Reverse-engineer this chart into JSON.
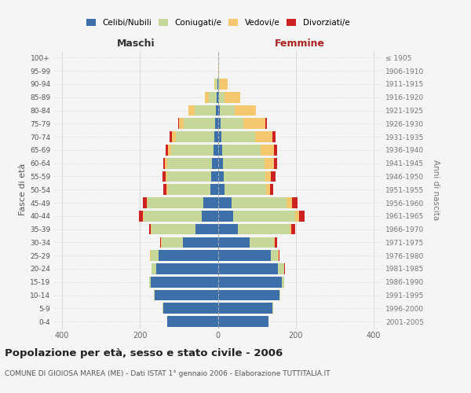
{
  "age_groups": [
    "0-4",
    "5-9",
    "10-14",
    "15-19",
    "20-24",
    "25-29",
    "30-34",
    "35-39",
    "40-44",
    "45-49",
    "50-54",
    "55-59",
    "60-64",
    "65-69",
    "70-74",
    "75-79",
    "80-84",
    "85-89",
    "90-94",
    "95-99",
    "100+"
  ],
  "birth_years": [
    "2001-2005",
    "1996-2000",
    "1991-1995",
    "1986-1990",
    "1981-1985",
    "1976-1980",
    "1971-1975",
    "1966-1970",
    "1961-1965",
    "1956-1960",
    "1951-1955",
    "1946-1950",
    "1941-1945",
    "1936-1940",
    "1931-1935",
    "1926-1930",
    "1921-1925",
    "1916-1920",
    "1911-1915",
    "1906-1910",
    "≤ 1905"
  ],
  "males": {
    "celibi": [
      130,
      140,
      162,
      172,
      158,
      153,
      90,
      58,
      42,
      38,
      20,
      18,
      15,
      12,
      10,
      8,
      5,
      4,
      2,
      0,
      0
    ],
    "coniugati": [
      0,
      2,
      3,
      5,
      12,
      20,
      55,
      112,
      148,
      142,
      108,
      112,
      115,
      108,
      98,
      80,
      55,
      20,
      5,
      0,
      0
    ],
    "vedovi": [
      0,
      0,
      0,
      0,
      0,
      1,
      1,
      2,
      3,
      3,
      4,
      4,
      5,
      8,
      10,
      12,
      15,
      10,
      3,
      0,
      0
    ],
    "divorziati": [
      0,
      0,
      0,
      0,
      0,
      1,
      3,
      5,
      10,
      10,
      8,
      8,
      5,
      5,
      5,
      2,
      0,
      0,
      0,
      0,
      0
    ]
  },
  "females": {
    "nubili": [
      130,
      140,
      158,
      165,
      155,
      135,
      82,
      52,
      40,
      36,
      18,
      16,
      14,
      12,
      10,
      8,
      5,
      4,
      2,
      1,
      0
    ],
    "coniugate": [
      0,
      2,
      3,
      5,
      15,
      20,
      62,
      132,
      158,
      140,
      105,
      105,
      105,
      98,
      85,
      58,
      38,
      14,
      4,
      0,
      0
    ],
    "vedove": [
      0,
      0,
      0,
      0,
      1,
      2,
      3,
      5,
      10,
      14,
      10,
      15,
      25,
      35,
      45,
      55,
      55,
      40,
      20,
      2,
      0
    ],
    "divorziate": [
      0,
      0,
      0,
      0,
      1,
      2,
      5,
      10,
      15,
      15,
      10,
      12,
      8,
      8,
      8,
      5,
      0,
      0,
      0,
      0,
      0
    ]
  },
  "colors": {
    "celibi_nubili": "#3d6faa",
    "coniugati": "#c5d89a",
    "vedovi": "#f5c870",
    "divorziati": "#cc2222"
  },
  "xlim": 420,
  "title": "Popolazione per età, sesso e stato civile - 2006",
  "subtitle": "COMUNE DI GIOIOSA MAREA (ME) - Dati ISTAT 1° gennaio 2006 - Elaborazione TUTTITALIA.IT",
  "ylabel_left": "Fasce di età",
  "ylabel_right": "Anni di nascita",
  "xlabel_left": "Maschi",
  "xlabel_right": "Femmine",
  "bg_color": "#f5f5f5"
}
